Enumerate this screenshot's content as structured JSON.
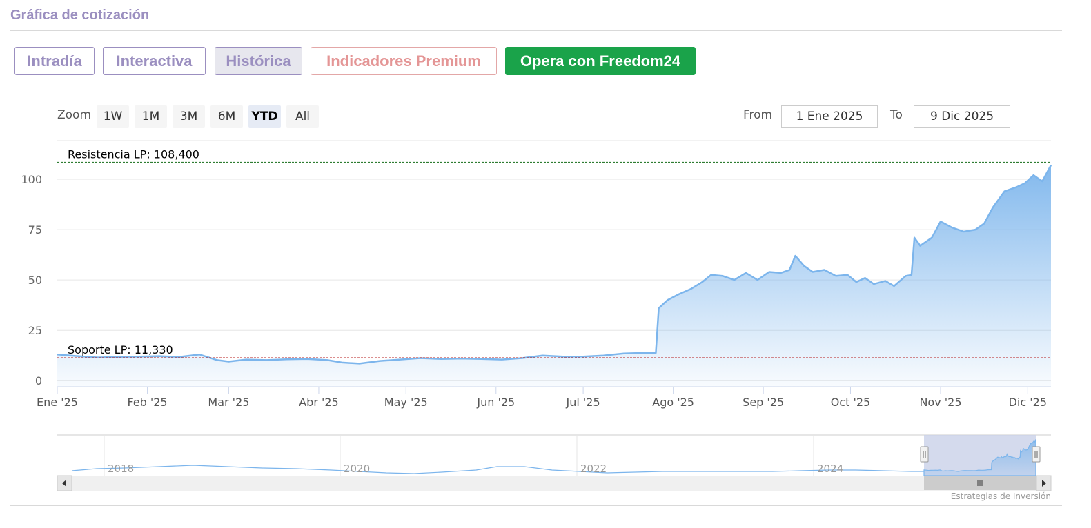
{
  "page": {
    "title": "Gráfica de cotización",
    "credit": "Estrategias de Inversión"
  },
  "tabs": [
    {
      "label": "Intradía"
    },
    {
      "label": "Interactiva"
    },
    {
      "label": "Histórica"
    },
    {
      "label": "Indicadores Premium"
    },
    {
      "label": "Opera con Freedom24"
    }
  ],
  "colors": {
    "accent": "#9b8fc0",
    "premium": "#e49696",
    "broker": "#1aa34a",
    "series": "#7cb5ec",
    "resistance": "#2e7d32",
    "support": "#b71c1c"
  },
  "zoom": {
    "label": "Zoom",
    "options": [
      "1W",
      "1M",
      "3M",
      "6M",
      "YTD",
      "All"
    ],
    "selected": "YTD"
  },
  "range": {
    "from_label": "From",
    "from_value": "1 Ene 2025",
    "to_label": "To",
    "to_value": "9 Dic 2025"
  },
  "chart_data": {
    "type": "area",
    "xlim": [
      "2025-01-01",
      "2025-12-09"
    ],
    "ylim": [
      -3,
      112
    ],
    "yticks": [
      0,
      25,
      50,
      75,
      100
    ],
    "xticks": [
      {
        "date": "2025-01-01",
        "label": "Ene '25"
      },
      {
        "date": "2025-02-01",
        "label": "Feb '25"
      },
      {
        "date": "2025-03-01",
        "label": "Mar '25"
      },
      {
        "date": "2025-04-01",
        "label": "Abr '25"
      },
      {
        "date": "2025-05-01",
        "label": "May '25"
      },
      {
        "date": "2025-06-01",
        "label": "Jun '25"
      },
      {
        "date": "2025-07-01",
        "label": "Jul '25"
      },
      {
        "date": "2025-08-01",
        "label": "Ago '25"
      },
      {
        "date": "2025-09-01",
        "label": "Sep '25"
      },
      {
        "date": "2025-10-01",
        "label": "Oct '25"
      },
      {
        "date": "2025-11-01",
        "label": "Nov '25"
      },
      {
        "date": "2025-12-01",
        "label": "Dic '25"
      }
    ],
    "series": [
      {
        "x": [
          "2025-01-01",
          "2025-01-08",
          "2025-01-15",
          "2025-01-22",
          "2025-01-29",
          "2025-02-05",
          "2025-02-12",
          "2025-02-19",
          "2025-02-25",
          "2025-03-01",
          "2025-03-07",
          "2025-03-14",
          "2025-03-21",
          "2025-03-28",
          "2025-04-04",
          "2025-04-09",
          "2025-04-15",
          "2025-04-22",
          "2025-04-29",
          "2025-05-06",
          "2025-05-13",
          "2025-05-20",
          "2025-05-27",
          "2025-06-03",
          "2025-06-10",
          "2025-06-17",
          "2025-06-24",
          "2025-07-01",
          "2025-07-08",
          "2025-07-15",
          "2025-07-22",
          "2025-07-26",
          "2025-07-27",
          "2025-07-30",
          "2025-08-03",
          "2025-08-07",
          "2025-08-11",
          "2025-08-14",
          "2025-08-18",
          "2025-08-22",
          "2025-08-26",
          "2025-08-30",
          "2025-09-03",
          "2025-09-07",
          "2025-09-10",
          "2025-09-12",
          "2025-09-15",
          "2025-09-18",
          "2025-09-22",
          "2025-09-26",
          "2025-09-30",
          "2025-10-03",
          "2025-10-06",
          "2025-10-09",
          "2025-10-13",
          "2025-10-16",
          "2025-10-20",
          "2025-10-22",
          "2025-10-23",
          "2025-10-25",
          "2025-10-29",
          "2025-11-01",
          "2025-11-05",
          "2025-11-09",
          "2025-11-13",
          "2025-11-16",
          "2025-11-19",
          "2025-11-23",
          "2025-11-27",
          "2025-11-30",
          "2025-12-03",
          "2025-12-06",
          "2025-12-09"
        ],
        "y": [
          13.0,
          12.2,
          11.5,
          11.8,
          12.0,
          12.2,
          11.8,
          13.0,
          10.2,
          9.5,
          10.5,
          10.2,
          10.6,
          10.8,
          10.2,
          9.0,
          8.5,
          9.8,
          10.5,
          11.2,
          10.8,
          11.0,
          10.8,
          10.5,
          11.2,
          12.5,
          12.0,
          12.0,
          12.5,
          13.5,
          13.8,
          13.8,
          36.0,
          40.0,
          43.0,
          45.5,
          49.0,
          52.5,
          52.0,
          50.0,
          53.5,
          50.0,
          54.0,
          53.5,
          55.0,
          62.0,
          57.0,
          54.0,
          55.0,
          52.0,
          52.5,
          49.0,
          51.0,
          48.0,
          49.5,
          47.0,
          52.0,
          52.5,
          71.0,
          67.0,
          71.0,
          79.0,
          76.0,
          74.0,
          75.0,
          78.0,
          86.0,
          94.0,
          96.0,
          98.0,
          102.0,
          99.0,
          107.0
        ]
      }
    ],
    "annotations": [
      {
        "label": "Resistencia LP: 108,400",
        "value": 108.4,
        "style": "dashed"
      },
      {
        "label": "Soporte LP: 11,330",
        "value": 11.33,
        "style": "dashed"
      }
    ],
    "navigator": {
      "labels": [
        "2018",
        "2020",
        "2022",
        "2024"
      ],
      "selected": "YTD"
    }
  }
}
